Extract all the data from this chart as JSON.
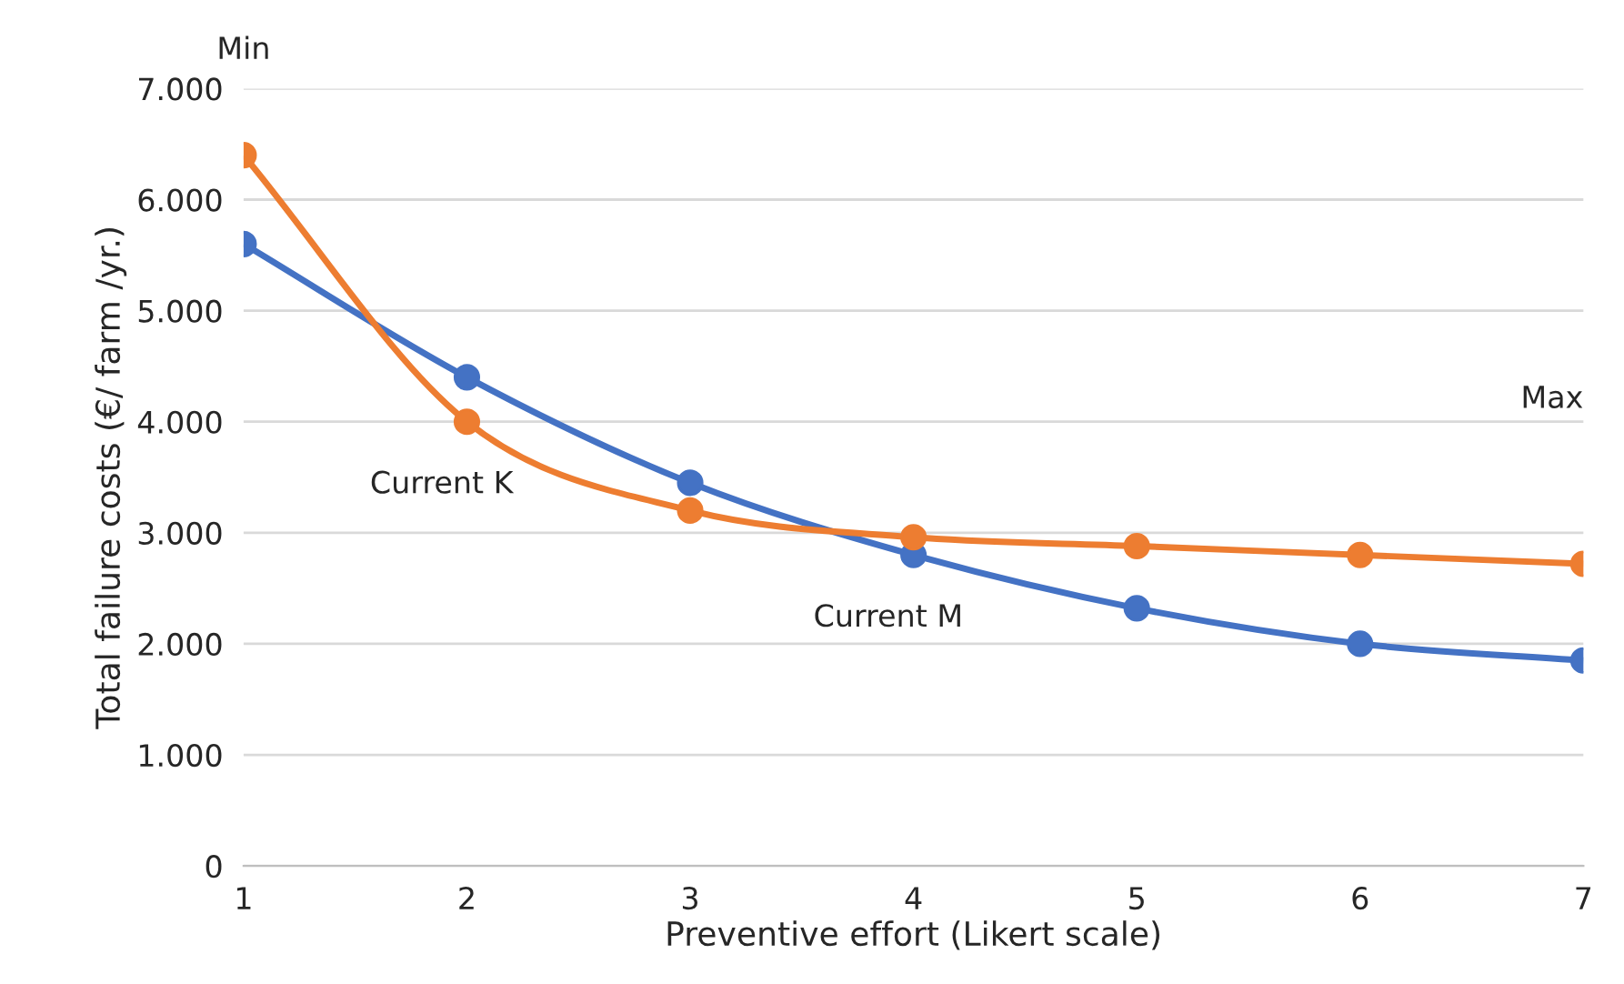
{
  "chart_data": {
    "type": "line",
    "xlabel": "Preventive effort (Likert scale)",
    "ylabel": "Total failure costs (€/ farm /yr.)",
    "x": [
      1,
      2,
      3,
      4,
      5,
      6,
      7
    ],
    "series": [
      {
        "color": "#4472c4",
        "values": [
          5600,
          4400,
          3450,
          2800,
          2320,
          2000,
          1850
        ]
      },
      {
        "color": "#ed7d31",
        "values": [
          6400,
          4000,
          3200,
          2960,
          2880,
          2800,
          2720
        ]
      }
    ],
    "xlim": [
      1,
      7
    ],
    "xticks": [
      1,
      2,
      3,
      4,
      5,
      6,
      7
    ],
    "ylim": [
      0,
      7000
    ],
    "yticks": [
      {
        "value": 0,
        "label": "0"
      },
      {
        "value": 1000,
        "label": "1.000"
      },
      {
        "value": 2000,
        "label": "2.000"
      },
      {
        "value": 3000,
        "label": "3.000"
      },
      {
        "value": 4000,
        "label": "4.000"
      },
      {
        "value": 5000,
        "label": "5.000"
      },
      {
        "value": 6000,
        "label": "6.000"
      },
      {
        "value": 7000,
        "label": "7.000"
      }
    ],
    "grid": "y",
    "marker": "circle",
    "line_style": "solid",
    "legend": false,
    "annotations": [
      "Min",
      "Max",
      {
        "text": "Current K",
        "x": 2,
        "y": 4000
      },
      {
        "text": "Current M",
        "x": 4,
        "y": 2800
      }
    ]
  }
}
